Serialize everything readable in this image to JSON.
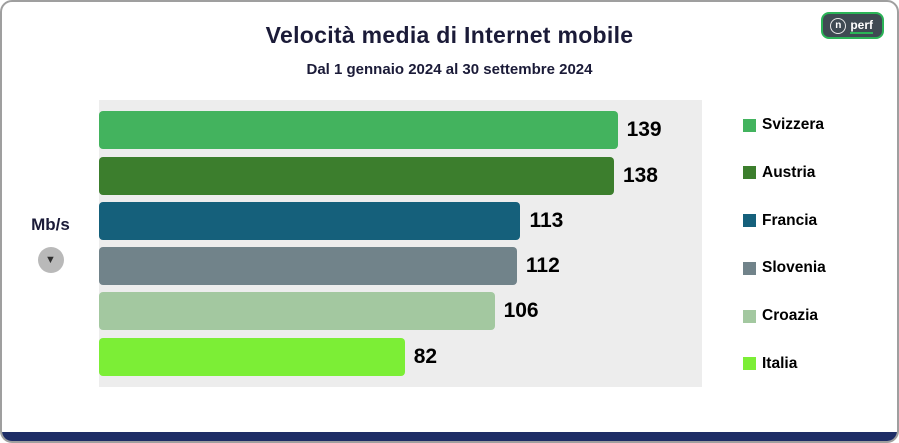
{
  "header": {
    "title": "Velocità media di Internet mobile",
    "subtitle": "Dal 1 gennaio 2024 al 30 settembre 2024"
  },
  "logo": {
    "icon_text": "n",
    "brand": "perf"
  },
  "axis": {
    "unit_label": "Mb/s"
  },
  "icons": {
    "arrow_down": "▼"
  },
  "chart_data": {
    "type": "bar",
    "orientation": "horizontal",
    "title": "Velocità media di Internet mobile",
    "subtitle": "Dal 1 gennaio 2024 al 30 settembre 2024",
    "categories": [
      "Svizzera",
      "Austria",
      "Francia",
      "Slovenia",
      "Croazia",
      "Italia"
    ],
    "values": [
      139,
      138,
      113,
      112,
      106,
      82
    ],
    "colors": [
      "#43b35e",
      "#3c7e2d",
      "#15607b",
      "#71838a",
      "#a3c8a0",
      "#7cee36"
    ],
    "xlabel": "",
    "ylabel": "Mb/s",
    "xlim": [
      0,
      150
    ],
    "grid": false,
    "legend_position": "right",
    "plot_background": "#ededed",
    "value_labels": true
  },
  "style_colors": {
    "footer_bar": "#1e2d66",
    "card_border": "#9f9f9f",
    "logo_accent": "#2bb457"
  }
}
